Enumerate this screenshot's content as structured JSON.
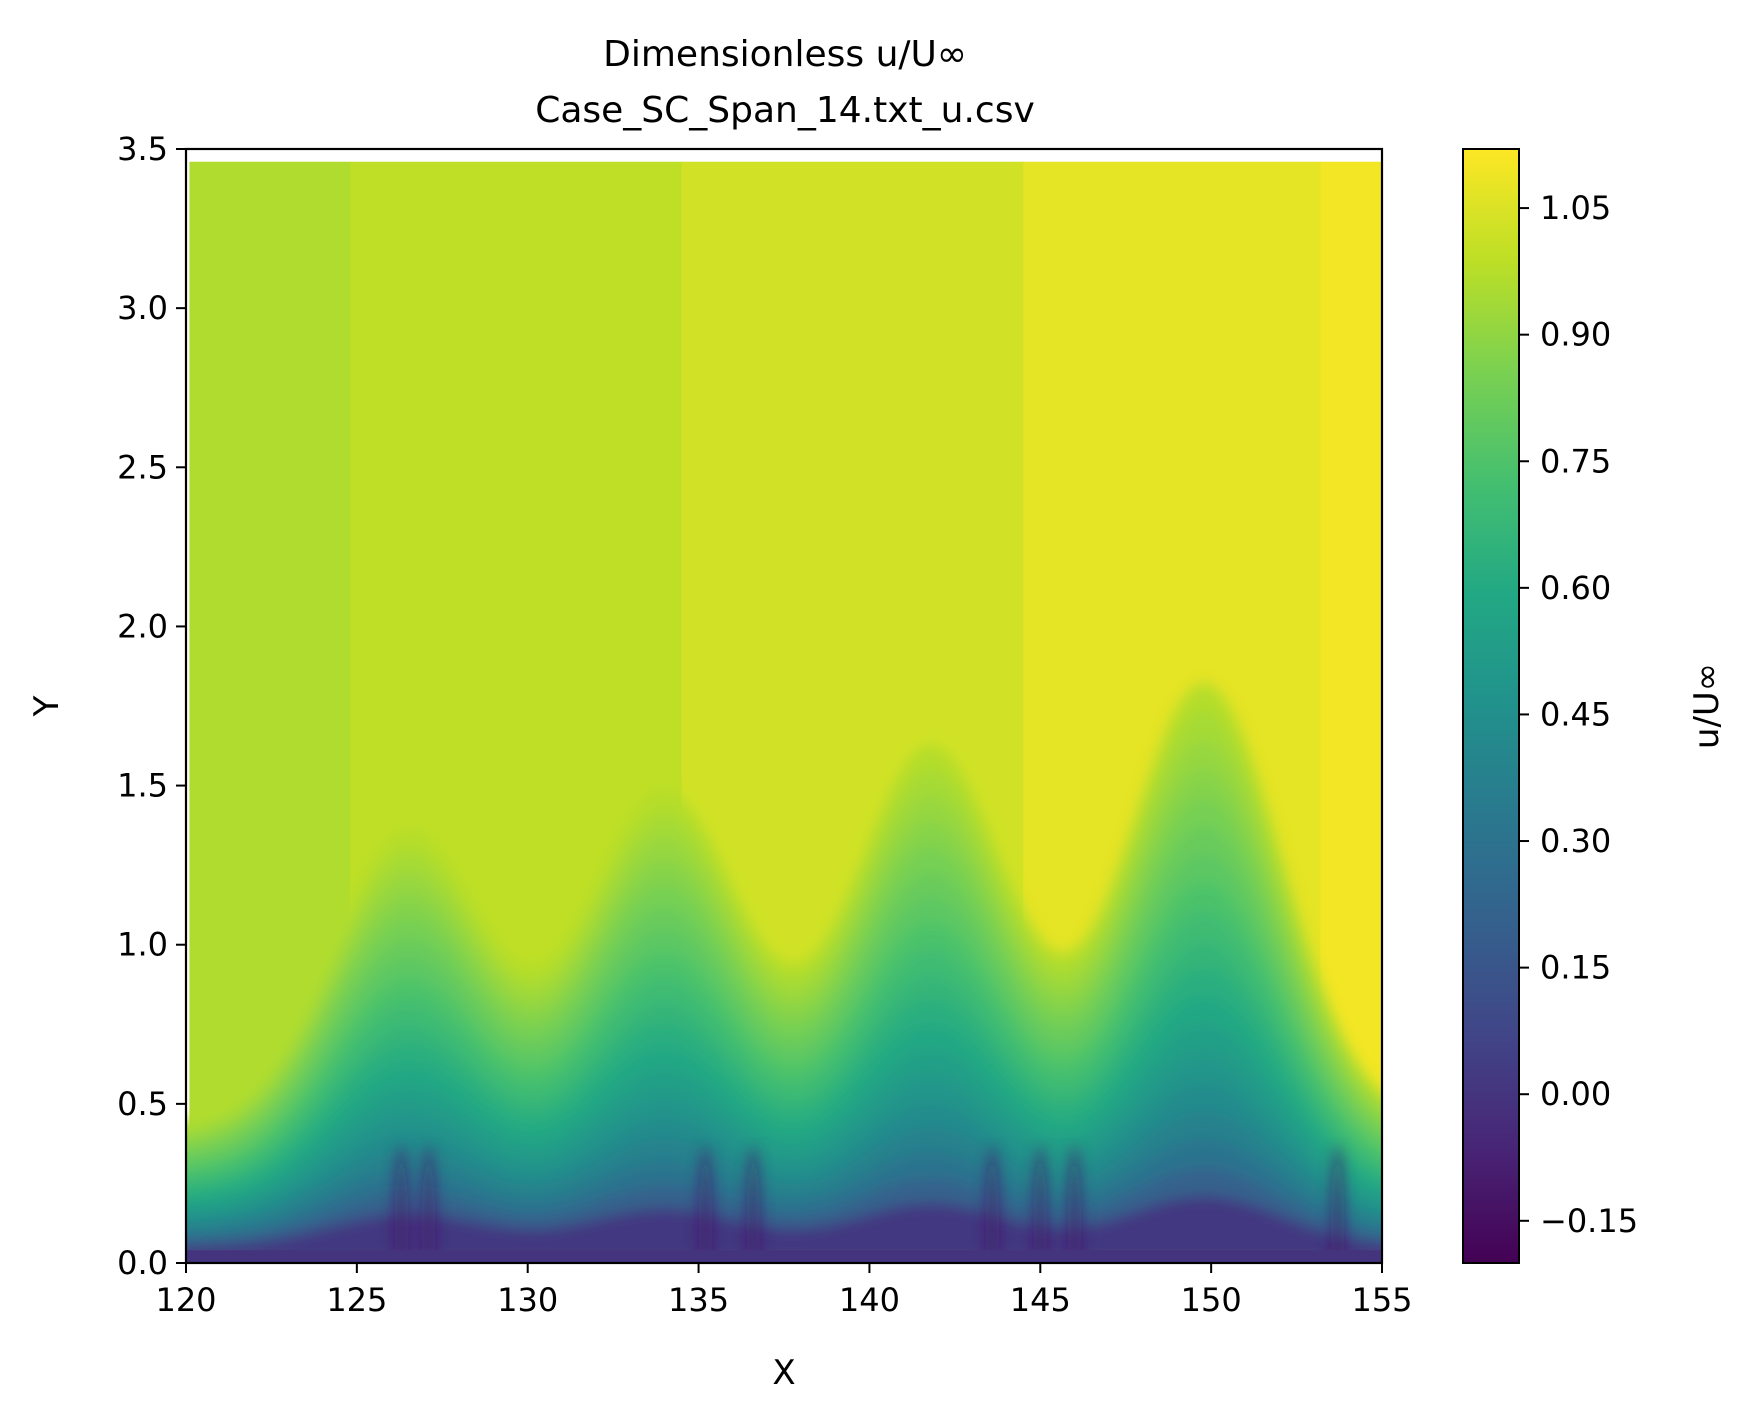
{
  "chart_data": {
    "type": "heatmap",
    "title": "Dimensionless u/U∞",
    "subtitle": "Case_SC_Span_14.txt_u.csv",
    "xlabel": "X",
    "ylabel": "Y",
    "xlim": [
      120,
      155
    ],
    "ylim": [
      0,
      3.5
    ],
    "xticks": [
      120,
      125,
      130,
      135,
      140,
      145,
      150,
      155
    ],
    "xtick_labels": [
      "120",
      "125",
      "130",
      "135",
      "140",
      "145",
      "150",
      "155"
    ],
    "yticks": [
      0.0,
      0.5,
      1.0,
      1.5,
      2.0,
      2.5,
      3.0,
      3.5
    ],
    "ytick_labels": [
      "0.0",
      "0.5",
      "1.0",
      "1.5",
      "2.0",
      "2.5",
      "3.0",
      "3.5"
    ],
    "colormap": "viridis",
    "colorbar": {
      "label": "u/U∞",
      "range": [
        -0.2,
        1.12
      ],
      "ticks": [
        -0.15,
        0.0,
        0.15,
        0.3,
        0.45,
        0.6,
        0.75,
        0.9,
        1.05
      ],
      "tick_labels": [
        "−0.15",
        "0.00",
        "0.15",
        "0.30",
        "0.45",
        "0.60",
        "0.75",
        "0.90",
        "1.05"
      ]
    },
    "data_extent": {
      "x": [
        120.1,
        155.0
      ],
      "y": [
        0.0,
        3.46
      ]
    },
    "grid": false,
    "features": {
      "freestream_band_edges_x": [
        124.8,
        134.5,
        144.5,
        153.2
      ],
      "freestream_band_values": [
        0.96,
        0.99,
        1.03,
        1.07,
        1.1
      ],
      "boundary_layer_bumps": [
        {
          "x": 126.5,
          "crest_y": 1.3
        },
        {
          "x": 134.0,
          "crest_y": 1.42
        },
        {
          "x": 141.8,
          "crest_y": 1.56
        },
        {
          "x": 149.8,
          "crest_y": 1.75
        }
      ],
      "near_wall_value": 0.0,
      "low_speed_streaks_x": [
        126.3,
        127.1,
        135.2,
        136.6,
        143.6,
        145.0,
        146.0,
        153.7
      ]
    }
  }
}
